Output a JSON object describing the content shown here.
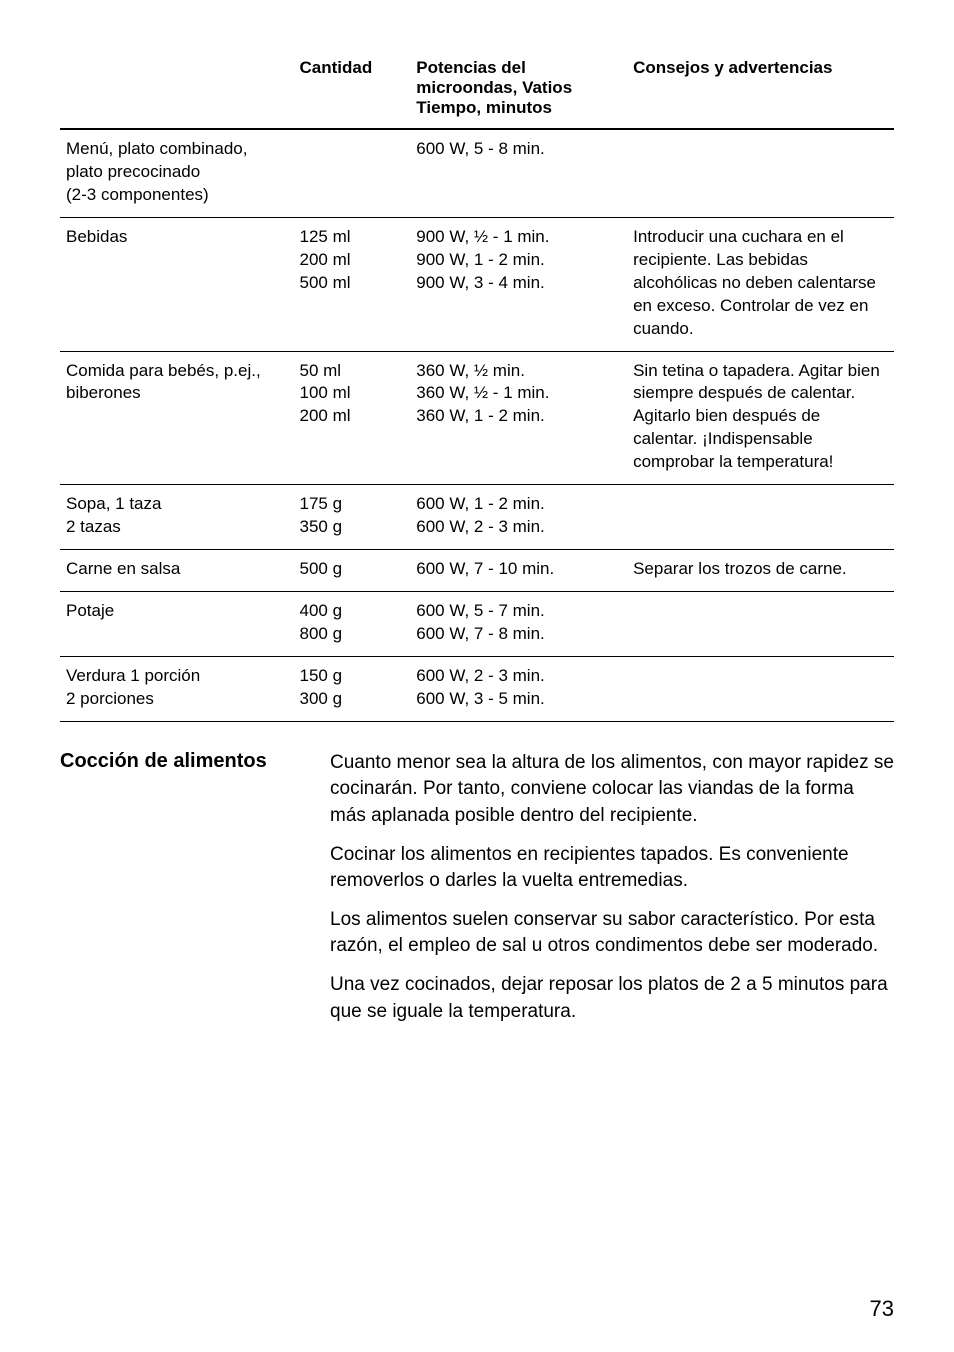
{
  "table": {
    "headers": [
      "",
      "Cantidad",
      "Potencias del\nmicroondas, Vatios\nTiempo, minutos",
      "Consejos y advertencias"
    ],
    "rows": [
      {
        "c0": "Menú, plato combinado,\nplato precocinado\n(2-3 componentes)",
        "c1": "",
        "c2": "600 W, 5 - 8 min.",
        "c3": ""
      },
      {
        "c0": "Bebidas",
        "c1": "125 ml\n200 ml\n500 ml",
        "c2": "900 W, ½ - 1 min.\n900 W, 1 - 2 min.\n900 W, 3 - 4 min.",
        "c3": "Introducir una cuchara en el recipiente. Las bebidas alcohólicas no deben calentarse en exceso. Controlar de vez en cuando."
      },
      {
        "c0": "Comida para bebés, p.ej.,\nbiberones",
        "c1": "50 ml\n100 ml\n200 ml",
        "c2": "360 W, ½ min.\n360 W, ½ - 1 min.\n360 W, 1 - 2 min.",
        "c3": "Sin tetina o tapadera. Agitar bien siempre después de calentar. Agitarlo bien después de calentar. ¡Indispensable comprobar la temperatura!"
      },
      {
        "c0": "Sopa,     1 taza\n             2 tazas",
        "c1": "175 g\n350 g",
        "c2": "600 W, 1 - 2 min.\n600 W, 2 - 3 min.",
        "c3": ""
      },
      {
        "c0": "Carne en salsa",
        "c1": "500 g",
        "c2": "600 W, 7 - 10 min.",
        "c3": "Separar los trozos de carne."
      },
      {
        "c0": "Potaje",
        "c1": "400 g\n800 g",
        "c2": "600 W, 5 - 7 min.\n600 W, 7 - 8 min.",
        "c3": ""
      },
      {
        "c0": "Verdura  1 porción\n             2 porciones",
        "c1": "150 g\n300 g",
        "c2": "600 W, 2 - 3 min.\n600 W, 3 - 5 min.",
        "c3": ""
      }
    ]
  },
  "section": {
    "title": "Cocción de alimentos",
    "p1": "Cuanto menor sea la altura de los alimentos, con mayor rapidez se cocinarán. Por tanto, conviene colocar las viandas de la forma más aplanada posible dentro del recipiente.",
    "p2": "Cocinar los alimentos en recipientes tapados. Es conveniente removerlos o darles la vuelta entremedias.",
    "p3": "Los alimentos suelen conservar su sabor característico. Por esta razón, el empleo de sal u otros condimentos debe ser moderado.",
    "p4": "Una vez cocinados, dejar reposar los platos de 2 a 5 minutos para que se iguale la temperatura."
  },
  "pageNumber": "73"
}
